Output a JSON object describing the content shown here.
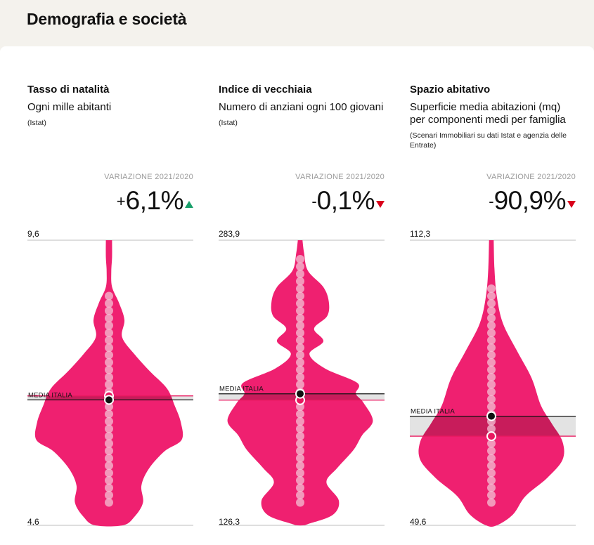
{
  "header": {
    "title": "Demografia e società"
  },
  "colors": {
    "violin": "#ef2070",
    "dot": "#f3c1d4",
    "band": "#e3e3e3",
    "band_overlap": "#c81c5b",
    "media_line": "#111111",
    "comparison_line": "#e8185f",
    "arrow_up": "#1aa06b",
    "arrow_down": "#d9001b"
  },
  "media_label": "MEDIA ITALIA",
  "variation_label": "VARIAZIONE 2021/2020",
  "columns": [
    {
      "title": "Tasso di natalità",
      "subtitle": "Ogni mille abitanti",
      "source": "(Istat)",
      "variation": {
        "sign": "+",
        "value": "6,1%",
        "direction": "up"
      },
      "axis": {
        "max_label": "9,6",
        "min_label": "4,6"
      }
    },
    {
      "title": "Indice di vecchiaia",
      "subtitle": "Numero di anziani ogni 100 giovani",
      "source": "(Istat)",
      "variation": {
        "sign": "-",
        "value": "0,1%",
        "direction": "down"
      },
      "axis": {
        "max_label": "283,9",
        "min_label": "126,3"
      }
    },
    {
      "title": "Spazio abitativo",
      "subtitle": "Superficie media abitazioni (mq) per componenti medi per famiglia",
      "source": "(Scenari Immobiliari su dati Istat e agenzia delle Entrate)",
      "variation": {
        "sign": "-",
        "value": "90,9%",
        "direction": "down"
      },
      "axis": {
        "max_label": "112,3",
        "min_label": "49,6"
      }
    }
  ],
  "chart_data": [
    {
      "type": "violin",
      "ylim": [
        4.6,
        9.6
      ],
      "media_italia": 6.8,
      "highlight": 6.87,
      "profile": [
        [
          9.6,
          0.04
        ],
        [
          9.3,
          0.04
        ],
        [
          9.05,
          0.03
        ],
        [
          8.78,
          0.04
        ],
        [
          8.5,
          0.13
        ],
        [
          8.2,
          0.2
        ],
        [
          7.9,
          0.17
        ],
        [
          7.6,
          0.33
        ],
        [
          7.3,
          0.53
        ],
        [
          7.0,
          0.75
        ],
        [
          6.7,
          0.85
        ],
        [
          6.4,
          0.93
        ],
        [
          6.1,
          0.94
        ],
        [
          5.9,
          0.72
        ],
        [
          5.6,
          0.52
        ],
        [
          5.3,
          0.42
        ],
        [
          5.0,
          0.44
        ],
        [
          4.75,
          0.33
        ],
        [
          4.6,
          0.18
        ]
      ]
    },
    {
      "type": "violin",
      "ylim": [
        126.3,
        283.9
      ],
      "media_italia": 199.0,
      "highlight": 195.5,
      "profile": [
        [
          283.9,
          0.03
        ],
        [
          277,
          0.05
        ],
        [
          267,
          0.1
        ],
        [
          258,
          0.3
        ],
        [
          250,
          0.37
        ],
        [
          242,
          0.35
        ],
        [
          235,
          0.18
        ],
        [
          228,
          0.3
        ],
        [
          221,
          0.12
        ],
        [
          213,
          0.32
        ],
        [
          205,
          0.74
        ],
        [
          199,
          0.72
        ],
        [
          194,
          0.82
        ],
        [
          184,
          0.94
        ],
        [
          176,
          0.8
        ],
        [
          168,
          0.69
        ],
        [
          158,
          0.48
        ],
        [
          150,
          0.34
        ],
        [
          140,
          0.5
        ],
        [
          132,
          0.42
        ],
        [
          127,
          0.1
        ],
        [
          126.3,
          0.04
        ]
      ]
    },
    {
      "type": "violin",
      "ylim": [
        49.6,
        112.3
      ],
      "media_italia": 73.6,
      "highlight": 69.2,
      "profile": [
        [
          112.3,
          0.03
        ],
        [
          106,
          0.04
        ],
        [
          100,
          0.07
        ],
        [
          94,
          0.15
        ],
        [
          88,
          0.33
        ],
        [
          82,
          0.52
        ],
        [
          76,
          0.64
        ],
        [
          72,
          0.78
        ],
        [
          68,
          0.92
        ],
        [
          64,
          0.92
        ],
        [
          60,
          0.72
        ],
        [
          56,
          0.44
        ],
        [
          52,
          0.28
        ],
        [
          49.6,
          0.07
        ]
      ]
    }
  ]
}
